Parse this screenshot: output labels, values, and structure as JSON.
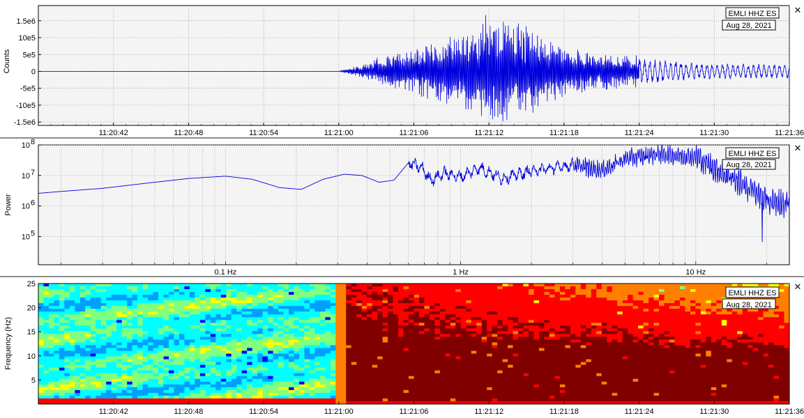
{
  "colors": {
    "trace": "#0000dd",
    "plot_bg": "#f4f4f4",
    "grid": "#9a9a9a"
  },
  "panels": {
    "close_symbol": "✕"
  },
  "chart_data": [
    {
      "type": "line",
      "name": "waveform",
      "badge": {
        "station": "EMLI HHZ ES",
        "date": "Aug 28, 2021"
      },
      "ylabel": "Counts",
      "xlabel": "",
      "ylim": [
        -1600000,
        1950000
      ],
      "y_ticks": [
        {
          "value": 1500000,
          "label": "1.5e6"
        },
        {
          "value": 1000000,
          "label": "10e5"
        },
        {
          "value": 500000,
          "label": "5e5"
        },
        {
          "value": 0,
          "label": "0"
        },
        {
          "value": -500000,
          "label": "-5e5"
        },
        {
          "value": -1000000,
          "label": "-10e5"
        },
        {
          "value": -1500000,
          "label": "-1.5e6"
        }
      ],
      "xlim": [
        "11:20:36",
        "11:21:36"
      ],
      "x_ticks": [
        "11:20:42",
        "11:20:48",
        "11:20:54",
        "11:21:00",
        "11:21:06",
        "11:21:12",
        "11:21:18",
        "11:21:24",
        "11:21:30",
        "11:21:36"
      ],
      "grid": true,
      "envelope": [
        {
          "t": "11:20:36",
          "amp": 3000
        },
        {
          "t": "11:21:00",
          "amp": 3000
        },
        {
          "t": "11:21:01",
          "amp": 120000
        },
        {
          "t": "11:21:02",
          "amp": 250000
        },
        {
          "t": "11:21:04",
          "amp": 550000
        },
        {
          "t": "11:21:06",
          "amp": 700000
        },
        {
          "t": "11:21:08",
          "amp": 950000
        },
        {
          "t": "11:21:10",
          "amp": 1200000
        },
        {
          "t": "11:21:12",
          "amp": 1750000
        },
        {
          "t": "11:21:14",
          "amp": 1500000
        },
        {
          "t": "11:21:16",
          "amp": 1200000
        },
        {
          "t": "11:21:18",
          "amp": 800000
        },
        {
          "t": "11:21:20",
          "amp": 600000
        },
        {
          "t": "11:21:22",
          "amp": 550000
        },
        {
          "t": "11:21:24",
          "amp": 500000
        },
        {
          "t": "11:21:26",
          "amp": 450000
        },
        {
          "t": "11:21:28",
          "amp": 380000
        },
        {
          "t": "11:21:30",
          "amp": 300000
        },
        {
          "t": "11:21:36",
          "amp": 280000
        }
      ]
    },
    {
      "type": "line",
      "name": "spectrum",
      "badge": {
        "station": "EMLI HHZ ES",
        "date": "Aug 28, 2021"
      },
      "ylabel": "Power",
      "xlabel": "",
      "x_scale": "log",
      "y_scale": "log",
      "xlim": [
        0.016,
        25
      ],
      "ylim": [
        12000,
        100000000
      ],
      "x_ticks": [
        {
          "value": 0.1,
          "label": "0.1 Hz"
        },
        {
          "value": 1,
          "label": "1 Hz"
        },
        {
          "value": 10,
          "label": "10 Hz"
        }
      ],
      "y_ticks": [
        {
          "value": 100000000,
          "label": "10",
          "exp": "8"
        },
        {
          "value": 10000000,
          "label": "10",
          "exp": "7"
        },
        {
          "value": 1000000,
          "label": "10",
          "exp": "6"
        },
        {
          "value": 100000,
          "label": "10",
          "exp": "5"
        }
      ],
      "grid": true,
      "points": [
        {
          "f": 0.016,
          "p": 2600000
        },
        {
          "f": 0.02,
          "p": 3000000
        },
        {
          "f": 0.03,
          "p": 3800000
        },
        {
          "f": 0.05,
          "p": 6000000
        },
        {
          "f": 0.07,
          "p": 8000000
        },
        {
          "f": 0.1,
          "p": 9500000
        },
        {
          "f": 0.13,
          "p": 7500000
        },
        {
          "f": 0.17,
          "p": 4000000
        },
        {
          "f": 0.21,
          "p": 3500000
        },
        {
          "f": 0.26,
          "p": 7500000
        },
        {
          "f": 0.32,
          "p": 11000000
        },
        {
          "f": 0.38,
          "p": 10000000
        },
        {
          "f": 0.45,
          "p": 6000000
        },
        {
          "f": 0.52,
          "p": 7000000
        },
        {
          "f": 0.6,
          "p": 26000000
        },
        {
          "f": 0.68,
          "p": 18000000
        },
        {
          "f": 0.75,
          "p": 7000000
        },
        {
          "f": 0.85,
          "p": 12000000
        },
        {
          "f": 1,
          "p": 9000000
        },
        {
          "f": 1.2,
          "p": 18000000
        },
        {
          "f": 1.5,
          "p": 8000000
        },
        {
          "f": 2,
          "p": 14000000
        },
        {
          "f": 3,
          "p": 22000000
        },
        {
          "f": 4,
          "p": 15000000
        },
        {
          "f": 5,
          "p": 35000000
        },
        {
          "f": 7,
          "p": 50000000
        },
        {
          "f": 10,
          "p": 40000000
        },
        {
          "f": 13,
          "p": 12000000
        },
        {
          "f": 16,
          "p": 5000000
        },
        {
          "f": 20,
          "p": 1500000
        },
        {
          "f": 25,
          "p": 1200000
        }
      ]
    },
    {
      "type": "heatmap",
      "name": "spectrogram",
      "badge": {
        "station": "EMLI HHZ ES",
        "date": "Aug 28, 2021"
      },
      "ylabel": "Frequency (Hz)",
      "xlabel": "",
      "ylim": [
        0,
        25
      ],
      "y_ticks": [
        {
          "value": 5,
          "label": "5"
        },
        {
          "value": 10,
          "label": "10"
        },
        {
          "value": 15,
          "label": "15"
        },
        {
          "value": 20,
          "label": "20"
        },
        {
          "value": 25,
          "label": "25"
        }
      ],
      "xlim": [
        "11:20:36",
        "11:21:36"
      ],
      "x_ticks": [
        "11:20:42",
        "11:20:48",
        "11:20:54",
        "11:21:00",
        "11:21:06",
        "11:21:12",
        "11:21:18",
        "11:21:24",
        "11:21:30",
        "11:21:36"
      ],
      "onset": "11:21:00",
      "colormap": [
        "#000080",
        "#0000ff",
        "#00a0ff",
        "#00ffff",
        "#80ff80",
        "#ffff00",
        "#ff8000",
        "#ff0000",
        "#800000"
      ],
      "grid": false
    }
  ]
}
